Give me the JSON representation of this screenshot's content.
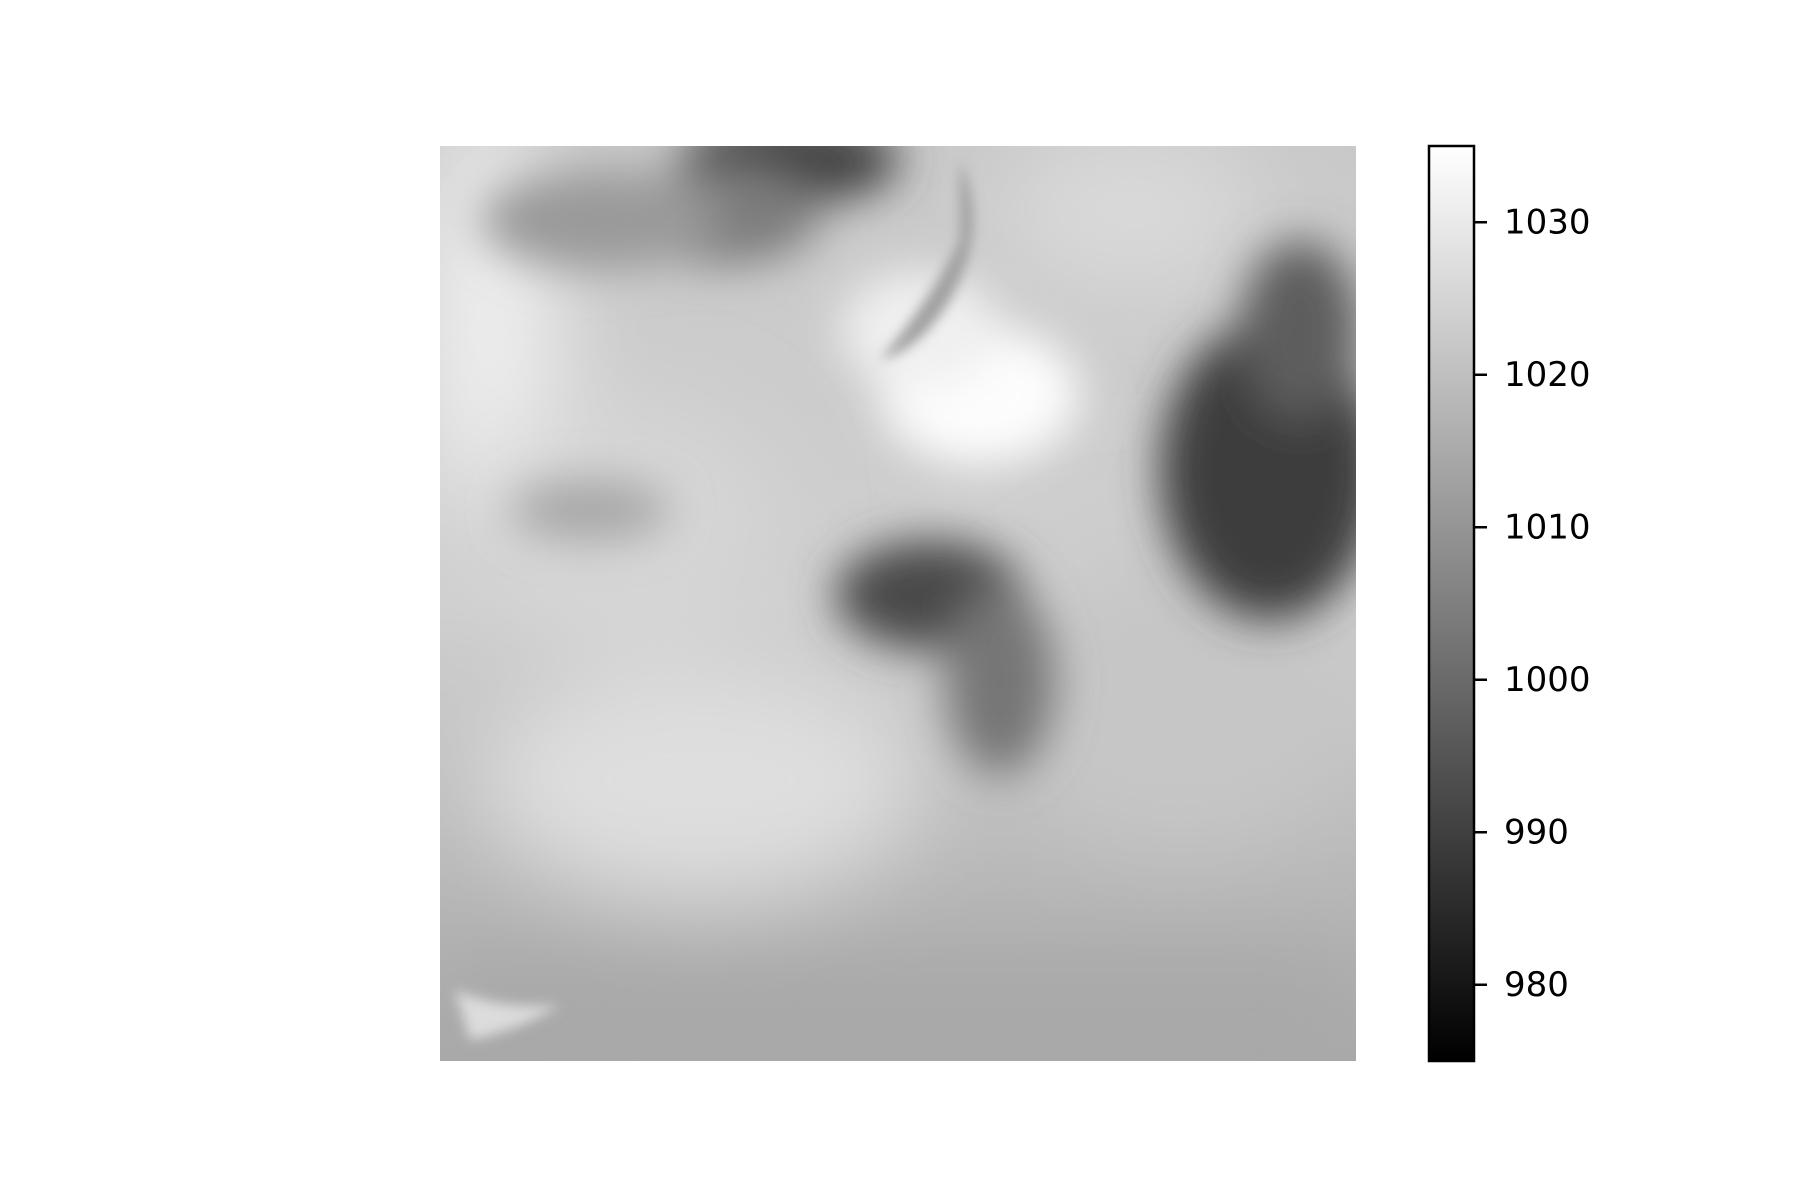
{
  "chart_data": {
    "type": "heatmap",
    "title": "",
    "xlabel": "",
    "ylabel": "",
    "colormap": "gray",
    "axes_visible": false,
    "grid": false,
    "colorbar": {
      "placement": "right",
      "vmin": 975,
      "vmax": 1035,
      "ticks": [
        980,
        990,
        1000,
        1010,
        1020,
        1030
      ],
      "tick_labels": [
        "980",
        "990",
        "1000",
        "1010",
        "1020",
        "1030"
      ],
      "label": ""
    },
    "value_range": [
      975,
      1035
    ]
  }
}
